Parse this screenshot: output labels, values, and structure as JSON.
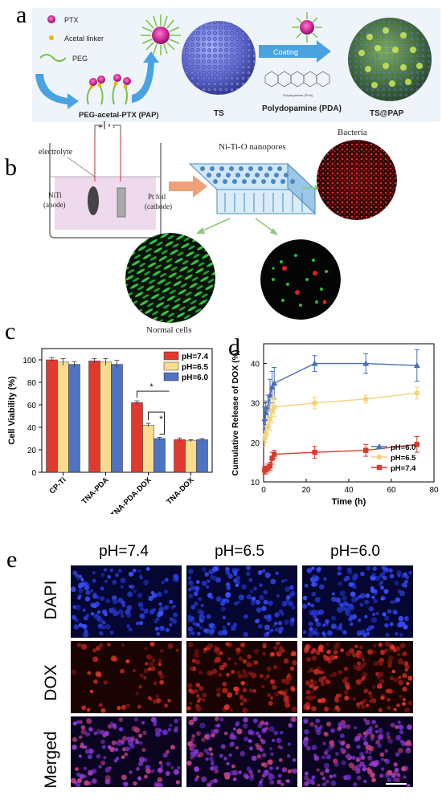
{
  "panels": {
    "a": {
      "letter": "a",
      "legend": [
        "PTX",
        "Acetal linker",
        "PEG"
      ],
      "labels": {
        "pap": "PEG-acetal-PTX (PAP)",
        "ts": "TS",
        "pda": "Polydopamine (PDA)",
        "coating": "Coating",
        "tspap": "TS@PAP",
        "pda_struct": "Polydopamine (PDA)"
      }
    },
    "b": {
      "letter": "b",
      "labels": {
        "electrolyte": "electrolyte",
        "niti": "NiTi",
        "anode": "(anode)",
        "pt": "Pt foil",
        "cathode": "(cathode)",
        "nanopores": "Ni-Ti-O nanopores",
        "bacteria": "Bacteria",
        "normal": "Normal cells",
        "plus": "+",
        "minus": "-"
      }
    },
    "c": {
      "letter": "c"
    },
    "d": {
      "letter": "d"
    },
    "e": {
      "letter": "e",
      "columns": [
        "pH=7.4",
        "pH=6.5",
        "pH=6.0"
      ],
      "rows": [
        "DAPI",
        "DOX",
        "Merged"
      ]
    }
  },
  "chart_data": [
    {
      "panel": "c",
      "type": "bar",
      "ylabel": "Cell Viability (%)",
      "ylim": [
        0,
        110
      ],
      "yticks": [
        0,
        20,
        40,
        60,
        80,
        100
      ],
      "categories": [
        "CP-Ti",
        "TNA-PDA",
        "TNA-PDA-DOX",
        "TNA-DOX"
      ],
      "series": [
        {
          "name": "pH=7.4",
          "color": "#e03a2f",
          "values": [
            100,
            99,
            62,
            29
          ],
          "errors": [
            2,
            2,
            1.5,
            1.5
          ]
        },
        {
          "name": "pH=6.5",
          "color": "#f7dc8f",
          "values": [
            98,
            98,
            42,
            28
          ],
          "errors": [
            3,
            3,
            1.5,
            1
          ]
        },
        {
          "name": "pH=6.0",
          "color": "#4d73c2",
          "values": [
            96,
            96,
            30,
            29
          ],
          "errors": [
            2.5,
            3.5,
            1,
            1
          ]
        }
      ],
      "significance": [
        "*",
        "*"
      ],
      "legend_position": "top-right"
    },
    {
      "panel": "d",
      "type": "line",
      "xlabel": "Time (h)",
      "ylabel": "Cumulative Release of DOX (%)",
      "xlim": [
        0,
        80
      ],
      "ylim": [
        10,
        45
      ],
      "xticks": [
        0,
        20,
        40,
        60,
        80
      ],
      "yticks": [
        10,
        20,
        30,
        40
      ],
      "series": [
        {
          "name": "pH=6.0",
          "color": "#4a6fb5",
          "marker": "triangle",
          "x": [
            0.5,
            1,
            2,
            3,
            4,
            5,
            24,
            48,
            72
          ],
          "y": [
            26,
            27.5,
            29,
            32,
            34,
            35,
            40,
            40,
            39.5
          ],
          "errors": [
            3,
            3,
            3,
            4,
            4,
            4,
            2,
            2.5,
            4
          ]
        },
        {
          "name": "pH=6.5",
          "color": "#f3d27a",
          "marker": "circle",
          "x": [
            0.5,
            1,
            2,
            3,
            4,
            5,
            24,
            48,
            72
          ],
          "y": [
            21,
            22,
            24,
            26,
            28,
            29,
            30,
            31,
            32.5
          ],
          "errors": [
            2,
            2,
            2,
            3,
            3,
            2.5,
            1.5,
            1,
            1.5
          ]
        },
        {
          "name": "pH=7.4",
          "color": "#d93a2b",
          "marker": "square",
          "x": [
            0.5,
            1,
            2,
            3,
            4,
            5,
            24,
            48,
            72
          ],
          "y": [
            13,
            13,
            13.5,
            14,
            16,
            17,
            17.5,
            18,
            19.5
          ],
          "errors": [
            1,
            1,
            1,
            1,
            1.5,
            1,
            1.5,
            1.5,
            2
          ]
        }
      ],
      "legend_position": "bottom-right"
    }
  ]
}
